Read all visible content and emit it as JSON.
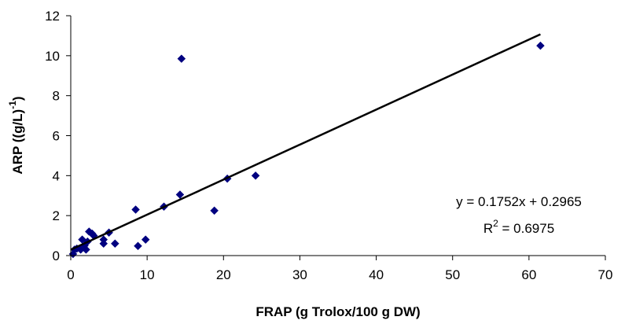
{
  "chart_data": {
    "type": "scatter",
    "title": "",
    "xlabel": "FRAP (g Trolox/100 g DW)",
    "ylabel": {
      "base": "ARP ((g/L)",
      "sup": "-1",
      "close": ")"
    },
    "xlim": [
      0,
      70
    ],
    "ylim": [
      0,
      12
    ],
    "xticks": [
      0,
      10,
      20,
      30,
      40,
      50,
      60,
      70
    ],
    "yticks": [
      0,
      2,
      4,
      6,
      8,
      10,
      12
    ],
    "grid": false,
    "legend": "none",
    "marker": "diamond",
    "marker_color": "#000080",
    "series": [
      {
        "points": [
          [
            0.3,
            0.08
          ],
          [
            0.5,
            0.3
          ],
          [
            0.8,
            0.35
          ],
          [
            1.3,
            0.3
          ],
          [
            1.5,
            0.8
          ],
          [
            1.8,
            0.5
          ],
          [
            2.0,
            0.3
          ],
          [
            2.2,
            0.7
          ],
          [
            2.4,
            1.2
          ],
          [
            2.8,
            1.1
          ],
          [
            3.0,
            1.0
          ],
          [
            4.3,
            0.6
          ],
          [
            4.3,
            0.8
          ],
          [
            5.0,
            1.15
          ],
          [
            5.8,
            0.6
          ],
          [
            8.5,
            2.3
          ],
          [
            8.8,
            0.48
          ],
          [
            9.8,
            0.8
          ],
          [
            12.2,
            2.45
          ],
          [
            14.3,
            3.05
          ],
          [
            14.5,
            9.85
          ],
          [
            18.8,
            2.25
          ],
          [
            20.5,
            3.85
          ],
          [
            24.2,
            4.0
          ],
          [
            61.5,
            10.5
          ]
        ]
      }
    ],
    "trendline": {
      "slope": 0.1752,
      "intercept": 0.2965,
      "x_range": [
        0,
        61.5
      ]
    },
    "annotation": {
      "equation": "y = 0.1752x + 0.2965",
      "r2_base": "R",
      "r2_sup": "2",
      "r2_value": " = 0.6975"
    }
  }
}
